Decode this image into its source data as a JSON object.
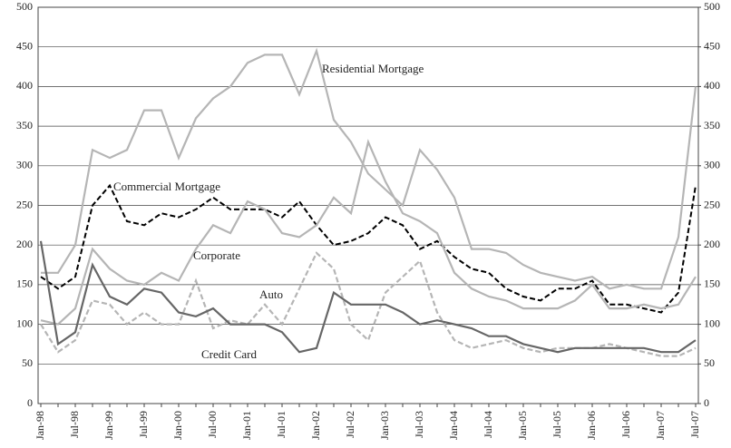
{
  "chart_data": {
    "type": "line",
    "categories": [
      "Jan-98",
      null,
      "Jul-98",
      null,
      "Jan-99",
      null,
      "Jul-99",
      null,
      "Jan-00",
      null,
      "Jul-00",
      null,
      "Jan-01",
      null,
      "Jul-01",
      null,
      "Jan-02",
      null,
      "Jul-02",
      null,
      "Jan-03",
      null,
      "Jul-03",
      null,
      "Jan-04",
      null,
      "Jul-04",
      null,
      "Jan-05",
      null,
      "Jul-05",
      null,
      "Jan-06",
      null,
      "Jul-06",
      null,
      "Jan-07",
      null,
      "Jul-07"
    ],
    "series": [
      {
        "name": "Residential Mortgage",
        "color": "#b5b5b5",
        "dash": false,
        "values": [
          165,
          165,
          200,
          320,
          310,
          320,
          370,
          370,
          310,
          360,
          385,
          400,
          430,
          440,
          440,
          390,
          445,
          358,
          330,
          290,
          270,
          250,
          320,
          295,
          260,
          195,
          195,
          190,
          175,
          165,
          160,
          155,
          160,
          145,
          150,
          145,
          145,
          210,
          400
        ]
      },
      {
        "name": "Commercial Mortgage",
        "color": "#000000",
        "dash": true,
        "values": [
          160,
          145,
          160,
          250,
          275,
          230,
          225,
          240,
          235,
          245,
          260,
          245,
          245,
          245,
          235,
          255,
          225,
          200,
          205,
          215,
          235,
          225,
          195,
          205,
          185,
          170,
          165,
          145,
          135,
          130,
          145,
          145,
          155,
          125,
          125,
          120,
          115,
          140,
          275
        ]
      },
      {
        "name": "Corporate",
        "color": "#b5b5b5",
        "dash": false,
        "values": [
          105,
          100,
          120,
          195,
          170,
          155,
          150,
          165,
          155,
          195,
          225,
          215,
          255,
          245,
          215,
          210,
          225,
          260,
          240,
          330,
          280,
          240,
          230,
          215,
          165,
          145,
          135,
          130,
          120,
          120,
          120,
          130,
          150,
          120,
          120,
          125,
          120,
          125,
          160
        ]
      },
      {
        "name": "Auto",
        "color": "#b5b5b5",
        "dash": true,
        "values": [
          100,
          65,
          80,
          130,
          125,
          100,
          115,
          100,
          100,
          155,
          95,
          105,
          100,
          125,
          100,
          145,
          190,
          170,
          100,
          80,
          140,
          160,
          180,
          115,
          80,
          70,
          75,
          80,
          70,
          65,
          70,
          70,
          70,
          75,
          70,
          65,
          60,
          60,
          70
        ]
      },
      {
        "name": "Credit Card",
        "color": "#666666",
        "dash": false,
        "values": [
          205,
          75,
          90,
          175,
          135,
          125,
          145,
          140,
          115,
          110,
          120,
          100,
          100,
          100,
          90,
          65,
          70,
          140,
          125,
          125,
          125,
          115,
          100,
          105,
          100,
          95,
          85,
          85,
          75,
          70,
          65,
          70,
          70,
          70,
          70,
          70,
          65,
          65,
          80
        ]
      }
    ],
    "ylim": [
      0,
      500
    ],
    "yticks": [
      0,
      50,
      100,
      150,
      200,
      250,
      300,
      350,
      400,
      450,
      500
    ],
    "y2lim": [
      0,
      500
    ],
    "y2ticks": [
      0,
      50,
      100,
      150,
      200,
      250,
      300,
      350,
      400,
      450,
      500
    ],
    "grid": true
  }
}
